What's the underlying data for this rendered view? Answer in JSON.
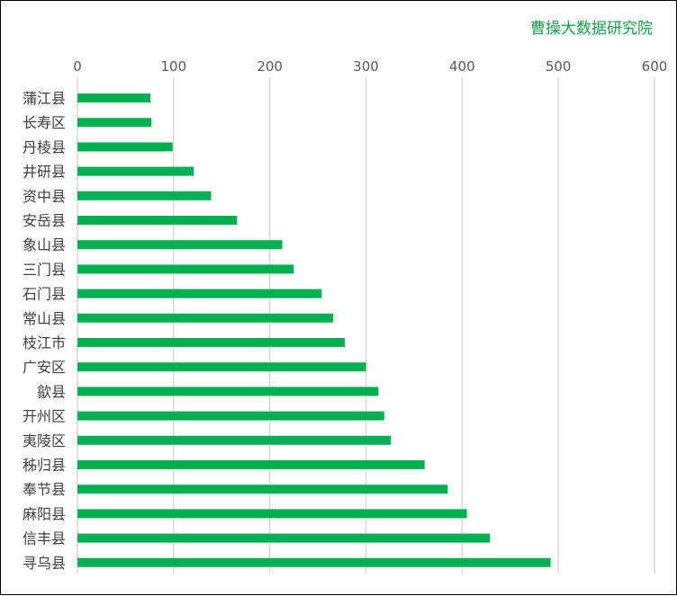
{
  "watermark": "曹操大数据研究院",
  "chart_data": {
    "type": "bar",
    "orientation": "horizontal",
    "categories": [
      "蒲江县",
      "长寿区",
      "丹棱县",
      "井研县",
      "资中县",
      "安岳县",
      "象山县",
      "三门县",
      "石门县",
      "常山县",
      "枝江市",
      "广安区",
      "歙县",
      "开州区",
      "夷陵区",
      "秭归县",
      "奉节县",
      "麻阳县",
      "信丰县",
      "寻乌县"
    ],
    "values": [
      76,
      77,
      99,
      121,
      139,
      166,
      213,
      225,
      254,
      266,
      278,
      300,
      313,
      319,
      326,
      361,
      385,
      405,
      429,
      492
    ],
    "xlim": [
      0,
      600
    ],
    "xticks": [
      0,
      100,
      200,
      300,
      400,
      500,
      600
    ],
    "x_axis_position": "top",
    "grid": true,
    "legend": "none",
    "bar_color": "#00b050",
    "title": "",
    "xlabel": "",
    "ylabel": ""
  }
}
